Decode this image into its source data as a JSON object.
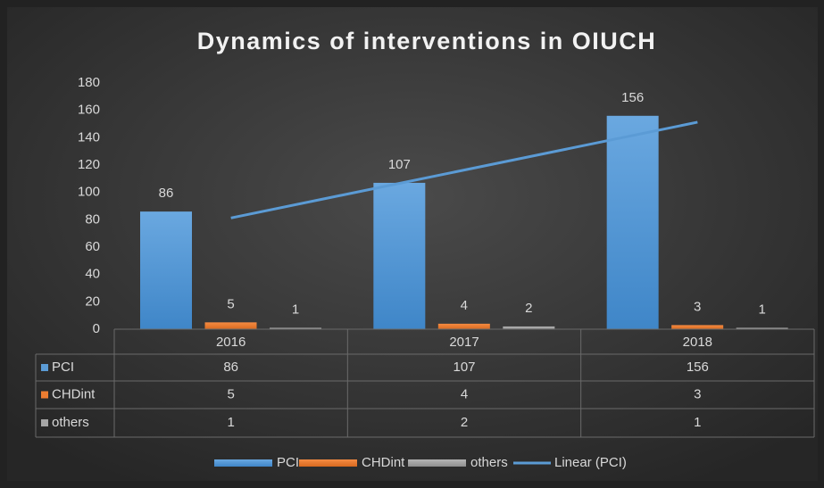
{
  "chart_data": {
    "type": "bar",
    "title": "Dynamics of interventions in OIUCH",
    "categories": [
      "2016",
      "2017",
      "2018"
    ],
    "series": [
      {
        "name": "PCI",
        "color": "#5b9bd5",
        "values": [
          86,
          107,
          156
        ]
      },
      {
        "name": "CHDint",
        "color": "#ed7d31",
        "values": [
          5,
          4,
          3
        ]
      },
      {
        "name": "others",
        "color": "#a5a5a5",
        "values": [
          1,
          2,
          1
        ]
      }
    ],
    "trendline": {
      "name": "Linear (PCI)",
      "series": 0,
      "color": "#5b9bd5"
    },
    "ylim": [
      0,
      180
    ],
    "yticks": [
      0,
      20,
      40,
      60,
      80,
      100,
      120,
      140,
      160,
      180
    ],
    "grid": false,
    "data_table": true,
    "legend": "bottom"
  }
}
